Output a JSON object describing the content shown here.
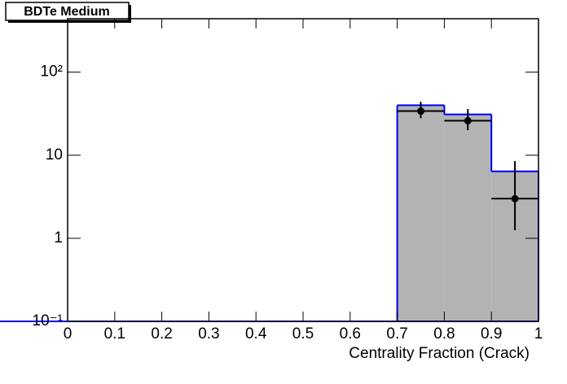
{
  "chart_data": {
    "type": "histogram",
    "title": "BDTe Medium",
    "x_label": "Centrality Fraction (Crack)",
    "bins": [
      0,
      0.1,
      0.2,
      0.3,
      0.4,
      0.5,
      0.6,
      0.7,
      0.8,
      0.9,
      1
    ],
    "counts": [
      0,
      0,
      0,
      0,
      0,
      0,
      0,
      40,
      31,
      6.4,
      0
    ],
    "fill_color": "#b3b3b3",
    "line_color": "#0000ff",
    "points": {
      "x": [
        0.75,
        0.85,
        0.95
      ],
      "values": [
        34,
        26,
        3
      ],
      "err_low": [
        6,
        6,
        1.75
      ],
      "err_high": [
        10,
        10,
        5.5
      ],
      "xerr": [
        0.05,
        0.05,
        0.05
      ],
      "color": "#000000"
    },
    "xlim": [
      0,
      1
    ],
    "xticks": [
      0,
      0.1,
      0.2,
      0.3,
      0.4,
      0.5,
      0.6,
      0.7,
      0.8,
      0.9,
      1
    ],
    "ylim": [
      0.1,
      440
    ],
    "yticks": [
      {
        "value": 0.1,
        "label": "10⁻¹"
      },
      1,
      10,
      {
        "value": 100,
        "label": "10²"
      }
    ],
    "log_y": true
  }
}
